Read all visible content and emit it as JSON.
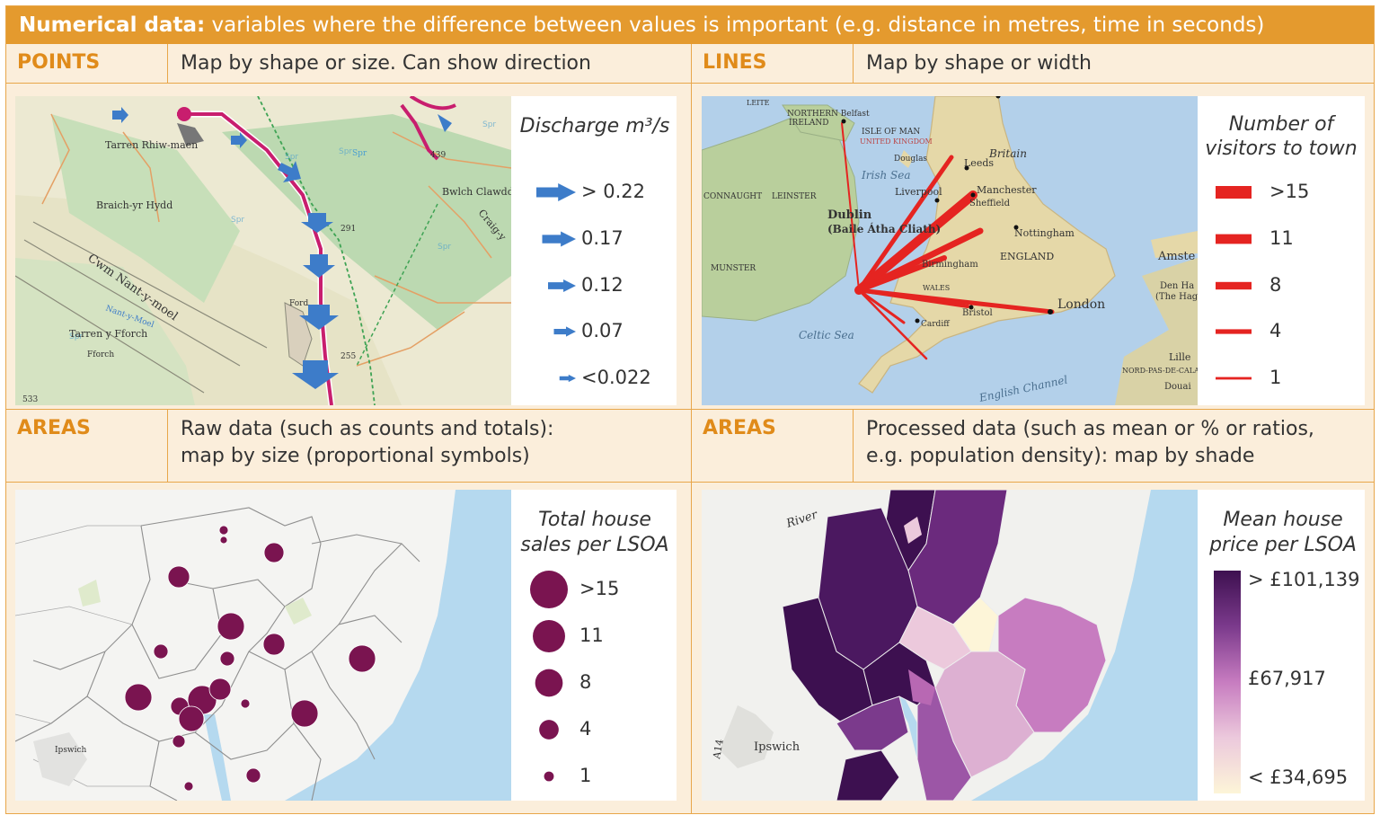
{
  "title": {
    "bold": "Numerical data:",
    "rest": "variables where the difference between values is important (e.g. distance in metres, time in seconds)"
  },
  "sections": {
    "points": {
      "label": "POINTS",
      "desc": "Map by shape or size. Can show direction"
    },
    "lines": {
      "label": "LINES",
      "desc": "Map by shape or width"
    },
    "areas_raw": {
      "label": "AREAS",
      "desc_line1": "Raw data (such as counts and totals):",
      "desc_line2": "map by size (proportional symbols)"
    },
    "areas_processed": {
      "label": "AREAS",
      "desc_line1": "Processed data (such as mean or % or ratios,",
      "desc_line2": "e.g. population density): map by shade"
    }
  },
  "points_legend": {
    "title": "Discharge m³/s",
    "items": [
      {
        "label": "> 0.22",
        "size": 0.22
      },
      {
        "label": "0.17",
        "size": 0.17
      },
      {
        "label": "0.12",
        "size": 0.12
      },
      {
        "label": "0.07",
        "size": 0.07
      },
      {
        "label": "<0.022",
        "size": 0.022
      }
    ],
    "color": "#3d7cc9"
  },
  "lines_legend": {
    "title_line1": "Number of",
    "title_line2": "visitors to town",
    "items": [
      {
        "label": ">15",
        "value": 15
      },
      {
        "label": "11",
        "value": 11
      },
      {
        "label": "8",
        "value": 8
      },
      {
        "label": "4",
        "value": 4
      },
      {
        "label": "1",
        "value": 1
      }
    ],
    "color": "#e52421"
  },
  "raw_legend": {
    "title_line1": "Total house",
    "title_line2": "sales per LSOA",
    "items": [
      {
        "label": ">15",
        "value": 15
      },
      {
        "label": "11",
        "value": 11
      },
      {
        "label": "8",
        "value": 8
      },
      {
        "label": "4",
        "value": 4
      },
      {
        "label": "1",
        "value": 1
      }
    ],
    "color": "#7a1450"
  },
  "processed_legend": {
    "title_line1": "Mean house",
    "title_line2": "price per LSOA",
    "max_label": "> £101,139",
    "mid_label": "£67,917",
    "min_label": "< £34,695",
    "colors": [
      "#3d1050",
      "#7b3a8c",
      "#c77cc0",
      "#ecc9dc",
      "#fdf5d8"
    ]
  },
  "points_map": {
    "labels": [
      "Tarren Rhiw-maen",
      "Braich-yr Hydd",
      "Cwm Nant-y-moel",
      "Tarren y Fforch",
      "Bwlch Clawdd",
      "Craig-y",
      "Fforch",
      "Ford",
      "Nant-y-Moel",
      "439",
      "291",
      "255",
      "533",
      "Spr"
    ],
    "colors": {
      "land": "#e8edd2",
      "forest": "#b9d7b0",
      "road": "#c81e6e",
      "water": "#3d7cc9"
    }
  },
  "lines_map": {
    "labels": [
      "NORTHERN Belfast",
      "IRELAND",
      "ISLE OF MAN",
      "UNITED KINGDOM",
      "Douglas",
      "Irish Sea",
      "Liverpool",
      "Leeds",
      "Britain",
      "Manchester",
      "Sheffield",
      "CONNAUGHT",
      "LEINSTER",
      "Dublin",
      "(Baile Átha Cliath)",
      "Nottingham",
      "ENGLAND",
      "Birmingham",
      "MUNSTER",
      "WALES",
      "Bristol",
      "London",
      "Cardiff",
      "Celtic Sea",
      "English Channel",
      "Amste",
      "Den Ha",
      "(The Hag",
      "Lille",
      "NORD-PAS-DE-CALAIS",
      "Douai",
      "LEITE"
    ],
    "colors": {
      "sea": "#b3d0ea",
      "land": "#e5d8a8",
      "ireland": "#b9cf9c",
      "flow": "#e52421"
    }
  },
  "raw_map": {
    "labels": [
      "Ipswich"
    ],
    "colors": {
      "sea": "#b5d9ef",
      "land": "#f4f4f2"
    }
  },
  "processed_map": {
    "labels": [
      "River",
      "Ipswich",
      "A14"
    ],
    "colors": {
      "sea": "#b5d9ef",
      "land": "#f1f1ee"
    }
  }
}
